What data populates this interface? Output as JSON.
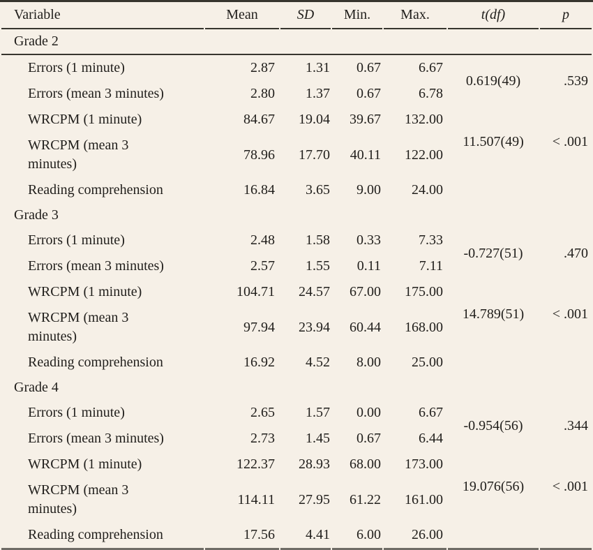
{
  "colors": {
    "background": "#f6f0e7",
    "text": "#201e1b",
    "rule_dark": "#37352e",
    "rule_bottom": "#6f6c66"
  },
  "table": {
    "columns": [
      "Variable",
      "Mean",
      "SD",
      "Min.",
      "Max.",
      "t(df)",
      "p"
    ],
    "groups": [
      {
        "label": "Grade 2",
        "rows": [
          {
            "variable": "Errors (1 minute)",
            "mean": "2.87",
            "sd": "1.31",
            "min": "0.67",
            "max": "6.67"
          },
          {
            "variable": "Errors (mean 3 minutes)",
            "mean": "2.80",
            "sd": "1.37",
            "min": "0.67",
            "max": "6.78"
          },
          {
            "variable": "WRCPM (1 minute)",
            "mean": "84.67",
            "sd": "19.04",
            "min": "39.67",
            "max": "132.00"
          },
          {
            "variable": "WRCPM (mean 3\nminutes)",
            "mean": "78.96",
            "sd": "17.70",
            "min": "40.11",
            "max": "122.00"
          },
          {
            "variable": "Reading comprehension",
            "mean": "16.84",
            "sd": "3.65",
            "min": "9.00",
            "max": "24.00"
          }
        ],
        "tests": [
          {
            "t_df": "0.619(49)",
            "p": ".539"
          },
          {
            "t_df": "11.507(49)",
            "p": "< .001"
          }
        ]
      },
      {
        "label": "Grade 3",
        "rows": [
          {
            "variable": "Errors (1 minute)",
            "mean": "2.48",
            "sd": "1.58",
            "min": "0.33",
            "max": "7.33"
          },
          {
            "variable": "Errors (mean 3 minutes)",
            "mean": "2.57",
            "sd": "1.55",
            "min": "0.11",
            "max": "7.11"
          },
          {
            "variable": "WRCPM (1 minute)",
            "mean": "104.71",
            "sd": "24.57",
            "min": "67.00",
            "max": "175.00"
          },
          {
            "variable": "WRCPM (mean 3\nminutes)",
            "mean": "97.94",
            "sd": "23.94",
            "min": "60.44",
            "max": "168.00"
          },
          {
            "variable": "Reading comprehension",
            "mean": "16.92",
            "sd": "4.52",
            "min": "8.00",
            "max": "25.00"
          }
        ],
        "tests": [
          {
            "t_df": "-0.727(51)",
            "p": ".470"
          },
          {
            "t_df": "14.789(51)",
            "p": "< .001"
          }
        ]
      },
      {
        "label": "Grade 4",
        "rows": [
          {
            "variable": "Errors (1 minute)",
            "mean": "2.65",
            "sd": "1.57",
            "min": "0.00",
            "max": "6.67"
          },
          {
            "variable": "Errors (mean 3 minutes)",
            "mean": "2.73",
            "sd": "1.45",
            "min": "0.67",
            "max": "6.44"
          },
          {
            "variable": "WRCPM (1 minute)",
            "mean": "122.37",
            "sd": "28.93",
            "min": "68.00",
            "max": "173.00"
          },
          {
            "variable": "WRCPM (mean 3\nminutes)",
            "mean": "114.11",
            "sd": "27.95",
            "min": "61.22",
            "max": "161.00"
          },
          {
            "variable": "Reading comprehension",
            "mean": "17.56",
            "sd": "4.41",
            "min": "6.00",
            "max": "26.00"
          }
        ],
        "tests": [
          {
            "t_df": "-0.954(56)",
            "p": ".344"
          },
          {
            "t_df": "19.076(56)",
            "p": "< .001"
          }
        ]
      }
    ]
  }
}
